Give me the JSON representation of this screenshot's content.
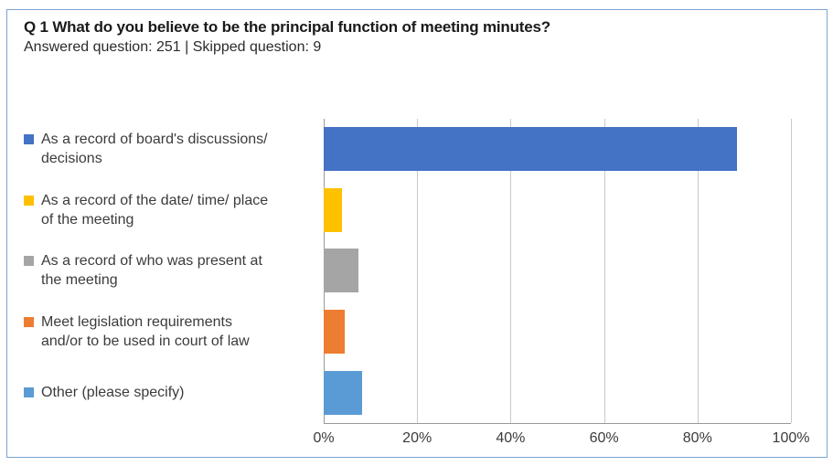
{
  "header": {
    "title": "Q 1 What do you believe to be the principal function of meeting minutes?",
    "subtitle": "Answered question: 251 | Skipped question: 9"
  },
  "chart_data": {
    "type": "bar",
    "orientation": "horizontal",
    "title": "Q 1 What do you believe to be the principal function of meeting minutes?",
    "subtitle": "Answered question: 251 | Skipped question: 9",
    "answered": 251,
    "skipped": 9,
    "categories": [
      "As a record of board's discussions/\ndecisions",
      "As a record of the date/ time/ place\nof the meeting",
      "As a record of who was present at\nthe meeting",
      "Meet legislation requirements\nand/or to be used in court of law",
      "Other (please specify)"
    ],
    "values": [
      88.5,
      4,
      7.5,
      4.5,
      8.2
    ],
    "unit": "%",
    "colors": [
      "#4472C4",
      "#FFC000",
      "#A5A5A5",
      "#ED7D31",
      "#5B9BD5"
    ],
    "x_ticks": [
      "0%",
      "20%",
      "40%",
      "60%",
      "80%",
      "100%"
    ],
    "xlim": [
      0,
      100
    ],
    "grid": true,
    "gridline_color": "#C9C9C9",
    "axis_color": "#9a9a9a",
    "border_color": "#79A4D3",
    "legend_position": "left"
  }
}
